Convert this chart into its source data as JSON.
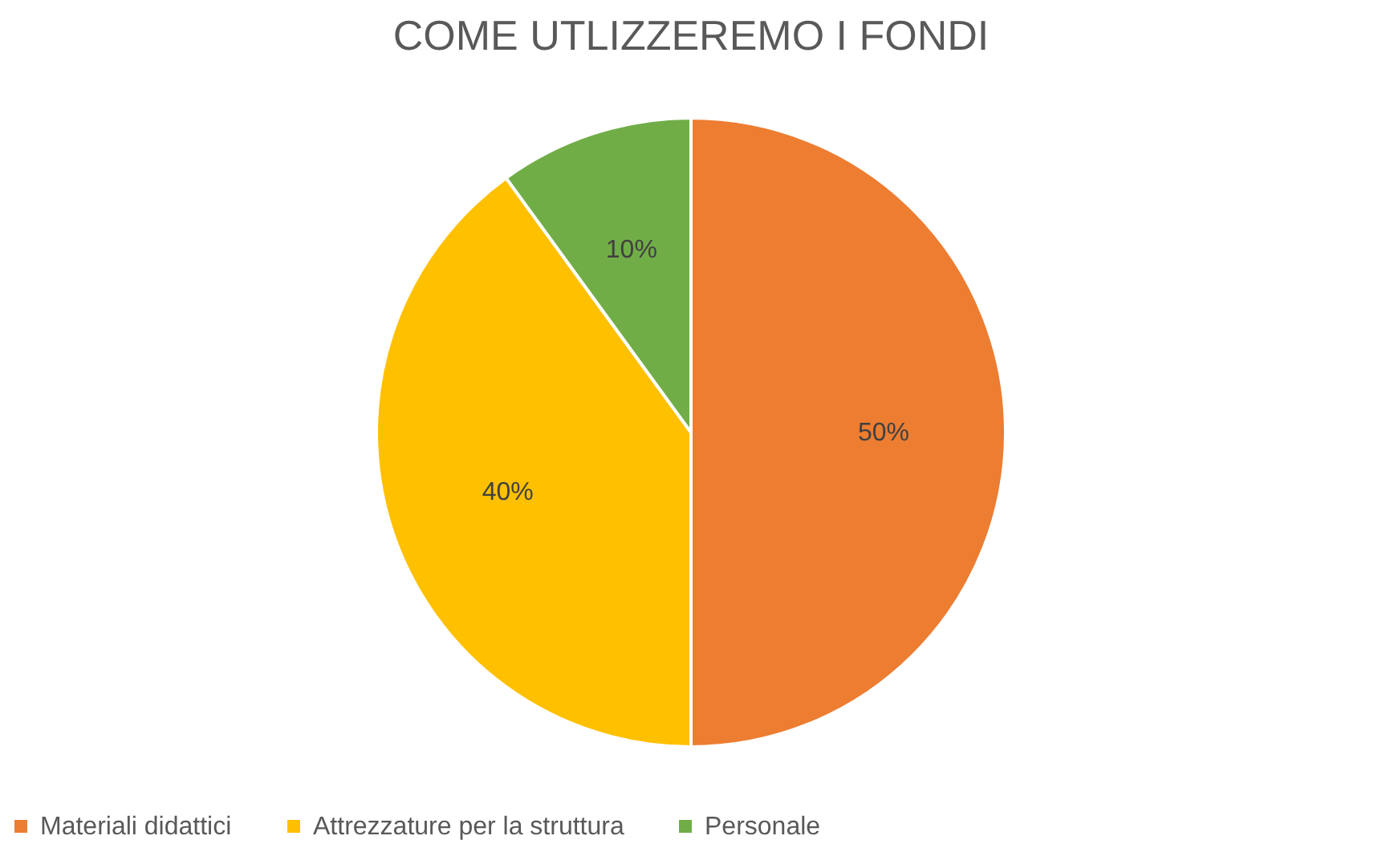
{
  "chart_data": {
    "type": "pie",
    "title": "COME UTLIZZEREMO I FONDI",
    "categories": [
      "Materiali didattici",
      "Attrezzature per la struttura",
      "Personale"
    ],
    "values": [
      50,
      40,
      10
    ],
    "colors": [
      "#ed7d31",
      "#ffc000",
      "#70ad47"
    ],
    "value_labels": [
      "50%",
      "40%",
      "10%"
    ],
    "legend": "bottom"
  }
}
